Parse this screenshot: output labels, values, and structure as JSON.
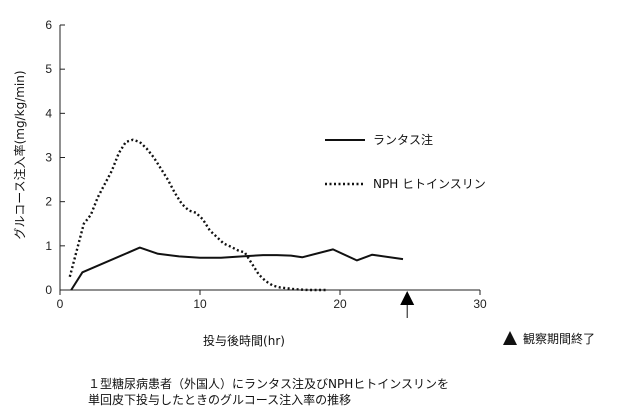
{
  "chart_data": {
    "type": "line",
    "title": "",
    "xlabel": "投与後時間(hr)",
    "ylabel": "グルコース注入率(mg/kg/min)",
    "xlim": [
      0,
      30
    ],
    "ylim": [
      0,
      6
    ],
    "xticks": [
      0,
      10,
      20,
      30
    ],
    "yticks": [
      0,
      1,
      2,
      3,
      4,
      5,
      6
    ],
    "grid": false,
    "legend_position": "right",
    "series": [
      {
        "name": "ランタス注",
        "style": "solid",
        "x": [
          0.8,
          1.6,
          5.7,
          7.0,
          8.5,
          10.0,
          11.5,
          13.0,
          14.5,
          15.5,
          16.5,
          17.3,
          19.5,
          21.2,
          22.3,
          24.5
        ],
        "y": [
          0.0,
          0.4,
          0.96,
          0.82,
          0.76,
          0.73,
          0.73,
          0.76,
          0.79,
          0.79,
          0.78,
          0.74,
          0.92,
          0.67,
          0.8,
          0.7
        ]
      },
      {
        "name": "NPH ヒトインスリン",
        "style": "dotted",
        "x": [
          0.7,
          1.2,
          1.7,
          2.2,
          2.7,
          3.2,
          3.7,
          4.2,
          4.7,
          5.2,
          5.7,
          6.2,
          6.7,
          7.2,
          7.7,
          8.2,
          8.7,
          9.2,
          9.7,
          10.2,
          10.7,
          11.2,
          11.7,
          12.2,
          12.7,
          13.2,
          13.7,
          14.2,
          14.7,
          15.2,
          15.7,
          16.2,
          16.7,
          17.2,
          17.7,
          18.2,
          18.7,
          19.0
        ],
        "y": [
          0.3,
          0.9,
          1.5,
          1.7,
          2.1,
          2.4,
          2.7,
          3.1,
          3.35,
          3.4,
          3.35,
          3.2,
          3.0,
          2.75,
          2.5,
          2.2,
          1.95,
          1.8,
          1.75,
          1.6,
          1.35,
          1.2,
          1.05,
          0.98,
          0.9,
          0.85,
          0.6,
          0.35,
          0.2,
          0.1,
          0.06,
          0.04,
          0.02,
          0.01,
          0.0,
          0.0,
          0.0,
          0.0
        ]
      }
    ],
    "marker": {
      "x": 24.8,
      "label": "▲"
    }
  },
  "legend_note": "観察期間終了",
  "caption": {
    "line1": "１型糖尿病患者（外国人）にランタス注及びNPHヒトインスリンを",
    "line2": "単回皮下投与したときのグルコース注入率の推移"
  }
}
